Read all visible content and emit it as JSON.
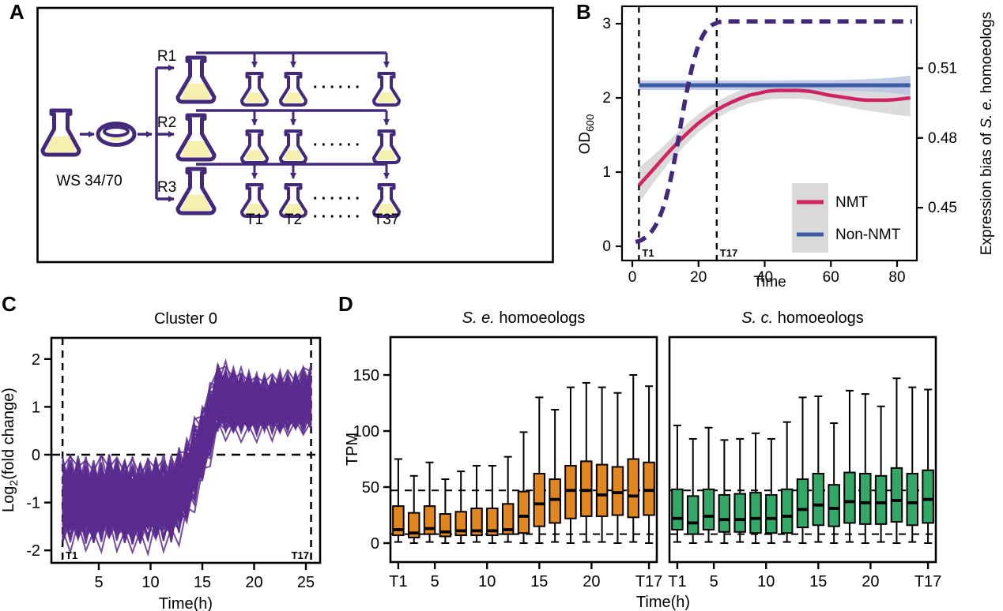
{
  "figure": {
    "panel_labels": [
      "A",
      "B",
      "C",
      "D"
    ]
  },
  "colors": {
    "ink": "#000000",
    "purple_dark": "#43297a",
    "purple_lines": "#5a2b8f",
    "pink": "#d02364",
    "blue": "#3c5ca8",
    "blue_band": "#b9c3e3",
    "gray_band": "#d2d2d2",
    "legend_bg": "#d9d9d9",
    "orange": "#e2861f",
    "green": "#31a865",
    "flask_fill": "#f6efad"
  },
  "diagram": {
    "source_label": "WS 34/70",
    "replicate_labels": [
      "R1",
      "R2",
      "R3"
    ],
    "timepoint_labels": [
      "T1",
      "T2",
      "T37"
    ],
    "dots": "······",
    "icons": [
      "flask-icon",
      "petri-dish-icon",
      "arrow"
    ]
  },
  "chart_data": [
    {
      "id": "B",
      "type": "line",
      "xlabel": "Time",
      "x_ticks": [
        "0",
        "20",
        "40",
        "60",
        "80"
      ],
      "x_tick_values": [
        0,
        20,
        40,
        60,
        80
      ],
      "xlim": [
        -3.1,
        86
      ],
      "ylim_od": [
        -0.19,
        3.23
      ],
      "ylabel_left": [
        {
          "t": "OD"
        },
        {
          "t": "600",
          "sub": true
        }
      ],
      "y_ticks_left": [
        "0",
        "1",
        "2",
        "3"
      ],
      "y_tick_values_left": [
        0,
        1,
        2,
        3
      ],
      "ylabel_right": [
        {
          "t": "Expression bias of "
        },
        {
          "t": "S. e.",
          "italic": true
        },
        {
          "t": " homoeologs"
        }
      ],
      "y_ticks_right": [
        "0.45",
        "0.48",
        "0.51"
      ],
      "y_ticks_right_od_position": [
        0.52,
        1.46,
        2.4
      ],
      "right_axis_values_approx": {
        "non_nmt_bias": 0.503,
        "nmt_plateau_bias": 0.5,
        "nmt_start_bias": 0.46
      },
      "vlines": [
        {
          "x": 2,
          "label": "T1"
        },
        {
          "x": 25.5,
          "label": "T17"
        }
      ],
      "series": [
        {
          "name": "growth-od600",
          "style": "dashed",
          "color_key": "purple_dark",
          "x": [
            1,
            2,
            3,
            4,
            5,
            6,
            7,
            8,
            9,
            10,
            11,
            12,
            13,
            14,
            15,
            16,
            17,
            18,
            19,
            20,
            21,
            22,
            23,
            24,
            25,
            26,
            28,
            30,
            34,
            40,
            50,
            60,
            70,
            80,
            84.5
          ],
          "y": [
            0.06,
            0.07,
            0.09,
            0.12,
            0.16,
            0.21,
            0.28,
            0.37,
            0.48,
            0.62,
            0.79,
            0.99,
            1.22,
            1.47,
            1.73,
            1.98,
            2.2,
            2.4,
            2.57,
            2.71,
            2.81,
            2.89,
            2.94,
            2.98,
            3.0,
            3.02,
            3.03,
            3.03,
            3.03,
            3.03,
            3.03,
            3.03,
            3.03,
            3.03,
            3.03
          ]
        },
        {
          "name": "NMT",
          "color_key": "pink",
          "band_color_key": "gray_band",
          "x": [
            2,
            5,
            8,
            11,
            14,
            17,
            20,
            23,
            26,
            29,
            32,
            35,
            38,
            41,
            44,
            47,
            50,
            53,
            56,
            59,
            62,
            65,
            68,
            71,
            74,
            77,
            80,
            84
          ],
          "y": [
            0.82,
            0.97,
            1.12,
            1.27,
            1.41,
            1.54,
            1.66,
            1.76,
            1.85,
            1.92,
            1.98,
            2.03,
            2.06,
            2.09,
            2.1,
            2.1,
            2.1,
            2.09,
            2.07,
            2.04,
            2.02,
            2.0,
            1.98,
            1.97,
            1.97,
            1.97,
            1.98,
            2.0
          ],
          "band_halfwidth": [
            0.24,
            0.2,
            0.17,
            0.15,
            0.14,
            0.13,
            0.12,
            0.12,
            0.11,
            0.11,
            0.11,
            0.11,
            0.11,
            0.11,
            0.11,
            0.11,
            0.11,
            0.11,
            0.11,
            0.11,
            0.12,
            0.12,
            0.13,
            0.14,
            0.16,
            0.18,
            0.21,
            0.25
          ]
        },
        {
          "name": "Non-NMT",
          "color_key": "blue",
          "band_color_key": "blue_band",
          "x": [
            2,
            40,
            60,
            70,
            78,
            84
          ],
          "y": [
            2.17,
            2.17,
            2.17,
            2.17,
            2.17,
            2.17
          ],
          "band_halfwidth": [
            0.065,
            0.065,
            0.07,
            0.08,
            0.1,
            0.13
          ]
        }
      ],
      "legend": {
        "entries": [
          {
            "label": "NMT",
            "color_key": "pink"
          },
          {
            "label": "Non-NMT",
            "color_key": "blue"
          }
        ]
      }
    },
    {
      "id": "C",
      "type": "line",
      "title": "Cluster 0",
      "xlabel": "Time(h)",
      "ylabel": [
        {
          "t": "Log"
        },
        {
          "t": "2",
          "sub": true
        },
        {
          "t": "(fold change)"
        }
      ],
      "x_ticks": [
        "5",
        "10",
        "15",
        "20",
        "25"
      ],
      "x_tick_values": [
        5,
        10,
        15,
        20,
        25
      ],
      "y_ticks": [
        "2",
        "1",
        "0",
        "-1",
        "-2"
      ],
      "y_tick_values": [
        2,
        1,
        0,
        -1,
        -2
      ],
      "xlim": [
        0.4,
        26.4
      ],
      "ylim": [
        -2.26,
        2.44
      ],
      "hline": 0,
      "vlines": [
        {
          "x": 1.5,
          "label": "T1"
        },
        {
          "x": 25.5,
          "label": "T17"
        }
      ],
      "ensemble": {
        "n_lines": 110,
        "x_start": 1.5,
        "x_step": 1.5,
        "mean": [
          -1.0,
          -0.95,
          -1.05,
          -0.92,
          -1.02,
          -1.05,
          -0.95,
          -1.0,
          -0.6,
          0.2,
          1.15,
          1.1,
          1.05,
          1.02,
          1.05,
          1.08,
          1.15
        ],
        "spread": [
          0.85,
          0.8,
          0.82,
          0.8,
          0.84,
          0.82,
          0.8,
          0.84,
          0.8,
          0.78,
          0.72,
          0.66,
          0.6,
          0.55,
          0.58,
          0.55,
          0.68
        ]
      }
    },
    {
      "id": "D1",
      "type": "box",
      "title": [
        {
          "t": "S. e.",
          "italic": true
        },
        {
          "t": " homoeologs"
        }
      ],
      "color_key": "orange",
      "ylabel": "TPM",
      "y_ticks": [
        "0",
        "50",
        "100",
        "150"
      ],
      "y_tick_values": [
        0,
        50,
        100,
        150
      ],
      "ylim": [
        -17,
        184
      ],
      "t_start": 1.5,
      "t_step": 1.5,
      "x_tick_labels": [
        "T1",
        "5",
        "10",
        "15",
        "20",
        "T17"
      ],
      "x_tick_times": [
        1.5,
        5,
        10,
        15,
        20,
        25.5
      ],
      "hlines": [
        47,
        8
      ],
      "boxes": {
        "lo": [
          1,
          0,
          1,
          0,
          0,
          1,
          0,
          1,
          0,
          0,
          1,
          0,
          1,
          1,
          0,
          1,
          0
        ],
        "q1": [
          7,
          5,
          8,
          6,
          7,
          7,
          7,
          8,
          9,
          15,
          18,
          22,
          24,
          24,
          25,
          23,
          25
        ],
        "med": [
          12,
          9,
          13,
          10,
          11,
          11,
          11,
          12,
          24,
          35,
          39,
          47,
          47,
          43,
          45,
          42,
          47
        ],
        "q3": [
          33,
          27,
          33,
          26,
          28,
          31,
          31,
          35,
          46,
          62,
          57,
          69,
          73,
          70,
          68,
          75,
          72
        ],
        "hi": [
          75,
          60,
          72,
          57,
          64,
          69,
          69,
          77,
          99,
          130,
          119,
          139,
          143,
          139,
          134,
          150,
          140
        ]
      }
    },
    {
      "id": "D2",
      "type": "box",
      "title": [
        {
          "t": "S. c.",
          "italic": true
        },
        {
          "t": " homoeologs"
        }
      ],
      "color_key": "green",
      "y_ticks": [],
      "ylim": [
        -17,
        184
      ],
      "t_start": 1.5,
      "t_step": 1.5,
      "x_tick_labels": [
        "T1",
        "5",
        "10",
        "15",
        "20",
        "T17"
      ],
      "x_tick_times": [
        1.5,
        5,
        10,
        15,
        20,
        25.5
      ],
      "hlines": [
        47,
        8
      ],
      "boxes": {
        "lo": [
          1,
          0,
          1,
          0,
          1,
          0,
          0,
          1,
          0,
          1,
          0,
          1,
          0,
          1,
          0,
          1,
          0
        ],
        "q1": [
          12,
          8,
          12,
          10,
          10,
          9,
          9,
          9,
          14,
          16,
          15,
          18,
          17,
          17,
          19,
          16,
          18
        ],
        "med": [
          22,
          18,
          24,
          21,
          21,
          22,
          22,
          24,
          30,
          34,
          31,
          37,
          36,
          36,
          38,
          36,
          39
        ],
        "q3": [
          48,
          42,
          48,
          43,
          44,
          45,
          43,
          48,
          57,
          62,
          52,
          63,
          62,
          60,
          67,
          62,
          65
        ],
        "hi": [
          105,
          93,
          103,
          92,
          93,
          98,
          93,
          108,
          130,
          131,
          107,
          136,
          133,
          122,
          147,
          139,
          137
        ]
      }
    }
  ],
  "shared": {
    "d_xlabel": "Time(h)"
  }
}
